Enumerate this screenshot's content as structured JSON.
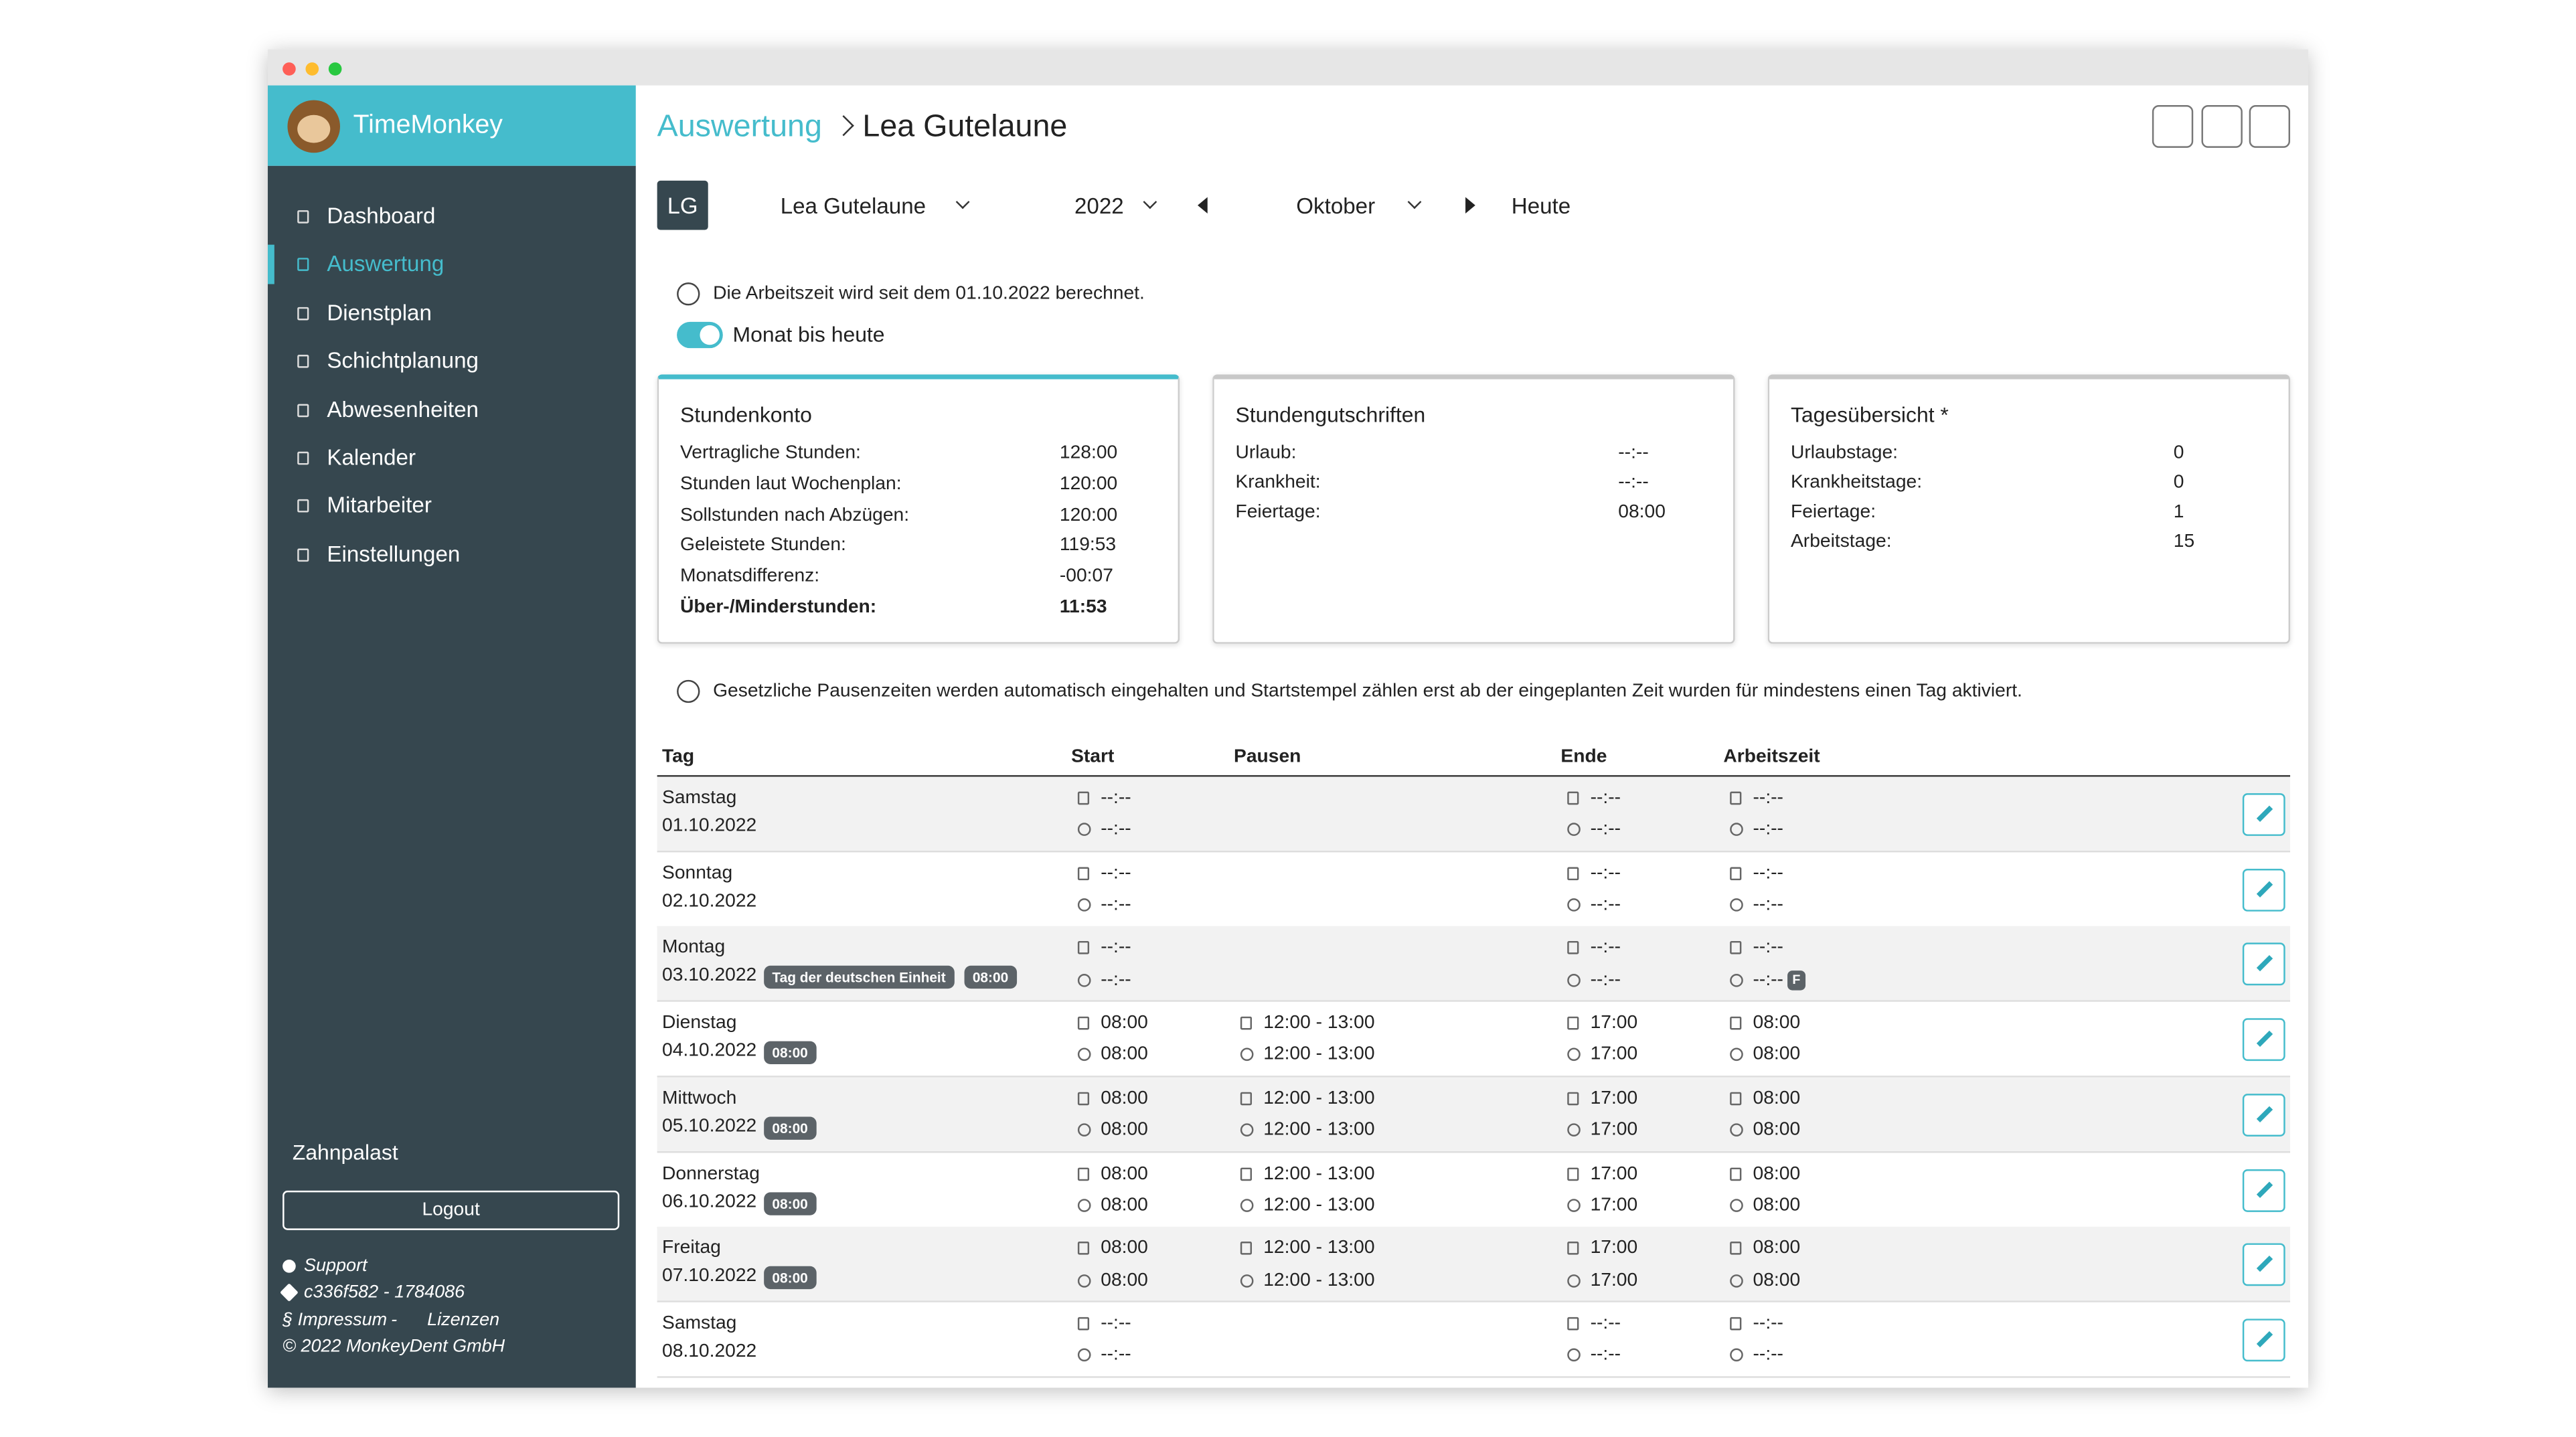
{
  "app": {
    "name": "TimeMonkey"
  },
  "nav": [
    "Dashboard",
    "Auswertung",
    "Dienstplan",
    "Schichtplanung",
    "Abwesenheiten",
    "Kalender",
    "Mitarbeiter",
    "Einstellungen"
  ],
  "sidebar_footer": {
    "company": "Zahnpalast",
    "logout": "Logout",
    "support": "Support",
    "version": "c336f582 - 1784086",
    "impressum": "§ Impressum",
    "separator": "-",
    "licenses": "Lizenzen",
    "copyright": "© 2022 MonkeyDent GmbH"
  },
  "header": {
    "breadcrumb": "Auswertung",
    "employee": "Lea Gutelaune"
  },
  "toolbar": {
    "initials": "LG",
    "employee": "Lea Gutelaune",
    "year": "2022",
    "month": "Oktober",
    "today": "Heute"
  },
  "info": "Die Arbeitszeit wird seit dem 01.10.2022 berechnet.",
  "toggle": "Monat bis heute",
  "cards": [
    {
      "title": "Stundenkonto",
      "rows": [
        [
          "Vertragliche Stunden:",
          "128:00"
        ],
        [
          "Stunden laut Wochenplan:",
          "120:00"
        ],
        [
          "Sollstunden nach Abzügen:",
          "120:00"
        ],
        [
          "Geleistete Stunden:",
          "119:53"
        ],
        [
          "Monatsdifferenz:",
          "-00:07"
        ],
        [
          "Über-/Minderstunden:",
          "11:53"
        ]
      ]
    },
    {
      "title": "Stundengutschriften",
      "rows": [
        [
          "Urlaub:",
          "--:--"
        ],
        [
          "Krankheit:",
          "--:--"
        ],
        [
          "Feiertage:",
          "08:00"
        ]
      ]
    },
    {
      "title": "Tagesübersicht *",
      "rows": [
        [
          "Urlaubstage:",
          "0"
        ],
        [
          "Krankheitstage:",
          "0"
        ],
        [
          "Feiertage:",
          "1"
        ],
        [
          "Arbeitstage:",
          "15"
        ]
      ]
    }
  ],
  "notice": "Gesetzliche Pausenzeiten werden automatisch eingehalten und Startstempel zählen erst ab der eingeplanten Zeit wurden für mindestens einen Tag aktiviert.",
  "table": {
    "columns": [
      "Tag",
      "Start",
      "Pausen",
      "Ende",
      "Arbeitszeit"
    ],
    "rows": [
      {
        "day": "Samstag",
        "date": "01.10.2022",
        "badges": [],
        "start": [
          "--:--",
          "--:--"
        ],
        "pausen": [],
        "ende": [
          "--:--",
          "--:--"
        ],
        "arbeitszeit": [
          "--:--",
          "--:--"
        ]
      },
      {
        "day": "Sonntag",
        "date": "02.10.2022",
        "badges": [],
        "start": [
          "--:--",
          "--:--"
        ],
        "pausen": [],
        "ende": [
          "--:--",
          "--:--"
        ],
        "arbeitszeit": [
          "--:--",
          "--:--"
        ]
      },
      {
        "day": "Montag",
        "date": "03.10.2022",
        "badges": [
          "Tag der deutschen Einheit",
          "08:00"
        ],
        "start": [
          "--:--",
          "--:--"
        ],
        "pausen": [],
        "ende": [
          "--:--",
          "--:--"
        ],
        "arbeitszeit": [
          "--:--",
          "--:--"
        ],
        "flag": "F"
      },
      {
        "day": "Dienstag",
        "date": "04.10.2022",
        "badges": [
          "08:00"
        ],
        "start": [
          "08:00",
          "08:00"
        ],
        "pausen": [
          "12:00 - 13:00",
          "12:00 - 13:00"
        ],
        "ende": [
          "17:00",
          "17:00"
        ],
        "arbeitszeit": [
          "08:00",
          "08:00"
        ]
      },
      {
        "day": "Mittwoch",
        "date": "05.10.2022",
        "badges": [
          "08:00"
        ],
        "start": [
          "08:00",
          "08:00"
        ],
        "pausen": [
          "12:00 - 13:00",
          "12:00 - 13:00"
        ],
        "ende": [
          "17:00",
          "17:00"
        ],
        "arbeitszeit": [
          "08:00",
          "08:00"
        ]
      },
      {
        "day": "Donnerstag",
        "date": "06.10.2022",
        "badges": [
          "08:00"
        ],
        "start": [
          "08:00",
          "08:00"
        ],
        "pausen": [
          "12:00 - 13:00",
          "12:00 - 13:00"
        ],
        "ende": [
          "17:00",
          "17:00"
        ],
        "arbeitszeit": [
          "08:00",
          "08:00"
        ]
      },
      {
        "day": "Freitag",
        "date": "07.10.2022",
        "badges": [
          "08:00"
        ],
        "start": [
          "08:00",
          "08:00"
        ],
        "pausen": [
          "12:00 - 13:00",
          "12:00 - 13:00"
        ],
        "ende": [
          "17:00",
          "17:00"
        ],
        "arbeitszeit": [
          "08:00",
          "08:00"
        ]
      },
      {
        "day": "Samstag",
        "date": "08.10.2022",
        "badges": [],
        "start": [
          "--:--",
          "--:--"
        ],
        "pausen": [],
        "ende": [
          "--:--",
          "--:--"
        ],
        "arbeitszeit": [
          "--:--",
          "--:--"
        ]
      }
    ]
  }
}
